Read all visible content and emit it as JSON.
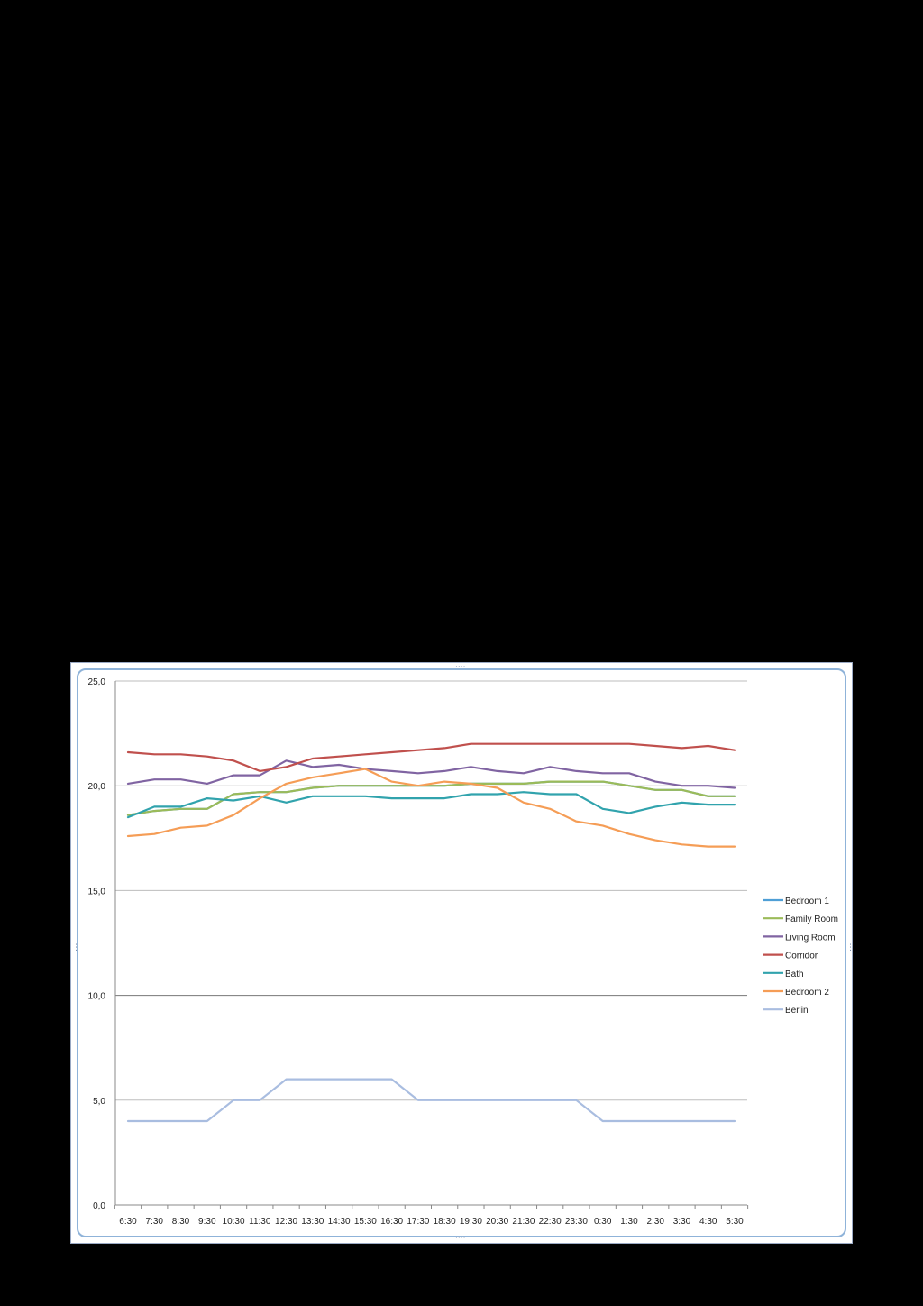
{
  "chart_data": {
    "type": "line",
    "title": "",
    "xlabel": "",
    "ylabel": "",
    "ylim": [
      0,
      25
    ],
    "yticks": [
      "0,0",
      "5,0",
      "10,0",
      "15,0",
      "20,0",
      "25,0"
    ],
    "ytick_values": [
      0,
      5,
      10,
      15,
      20,
      25
    ],
    "grid": true,
    "legend_position": "right",
    "categories": [
      "6:30",
      "7:30",
      "8:30",
      "9:30",
      "10:30",
      "11:30",
      "12:30",
      "13:30",
      "14:30",
      "15:30",
      "16:30",
      "17:30",
      "18:30",
      "19:30",
      "20:30",
      "21:30",
      "22:30",
      "23:30",
      "0:30",
      "1:30",
      "2:30",
      "3:30",
      "4:30",
      "5:30"
    ],
    "series": [
      {
        "name": "Bedroom 1",
        "color": "#4f9fd6",
        "values": [
          18.6,
          18.8,
          18.9,
          18.9,
          19.6,
          19.7,
          19.7,
          19.9,
          20.0,
          20.0,
          20.0,
          20.0,
          20.0,
          20.1,
          20.1,
          20.1,
          20.2,
          20.2,
          20.2,
          20.0,
          19.8,
          19.8,
          19.5,
          19.5
        ]
      },
      {
        "name": "Family Room",
        "color": "#9bbb59",
        "values": [
          18.6,
          18.8,
          18.9,
          18.9,
          19.6,
          19.7,
          19.7,
          19.9,
          20.0,
          20.0,
          20.0,
          20.0,
          20.0,
          20.1,
          20.1,
          20.1,
          20.2,
          20.2,
          20.2,
          20.0,
          19.8,
          19.8,
          19.5,
          19.5
        ]
      },
      {
        "name": "Living Room",
        "color": "#8064a2",
        "values": [
          20.1,
          20.3,
          20.3,
          20.1,
          20.5,
          20.5,
          21.2,
          20.9,
          21.0,
          20.8,
          20.7,
          20.6,
          20.7,
          20.9,
          20.7,
          20.6,
          20.9,
          20.7,
          20.6,
          20.6,
          20.2,
          20.0,
          20.0,
          19.9
        ]
      },
      {
        "name": "Corridor",
        "color": "#c0504d",
        "values": [
          21.6,
          21.5,
          21.5,
          21.4,
          21.2,
          20.7,
          20.9,
          21.3,
          21.4,
          21.5,
          21.6,
          21.7,
          21.8,
          22.0,
          22.0,
          22.0,
          22.0,
          22.0,
          22.0,
          22.0,
          21.9,
          21.8,
          21.9,
          21.7
        ]
      },
      {
        "name": "Bath",
        "color": "#31a3ad",
        "values": [
          18.5,
          19.0,
          19.0,
          19.4,
          19.3,
          19.5,
          19.2,
          19.5,
          19.5,
          19.5,
          19.4,
          19.4,
          19.4,
          19.6,
          19.6,
          19.7,
          19.6,
          19.6,
          18.9,
          18.7,
          19.0,
          19.2,
          19.1,
          19.1
        ]
      },
      {
        "name": "Bedroom 2",
        "color": "#f59d56",
        "values": [
          17.6,
          17.7,
          18.0,
          18.1,
          18.6,
          19.4,
          20.1,
          20.4,
          20.6,
          20.8,
          20.2,
          20.0,
          20.2,
          20.1,
          19.9,
          19.2,
          18.9,
          18.3,
          18.1,
          17.7,
          17.4,
          17.2,
          17.1,
          17.1
        ]
      },
      {
        "name": "Berlin",
        "color": "#a9bde0",
        "values": [
          4,
          4,
          4,
          4,
          5,
          5,
          6,
          6,
          6,
          6,
          6,
          5,
          5,
          5,
          5,
          5,
          5,
          5,
          4,
          4,
          4,
          4,
          4,
          4
        ]
      }
    ]
  }
}
